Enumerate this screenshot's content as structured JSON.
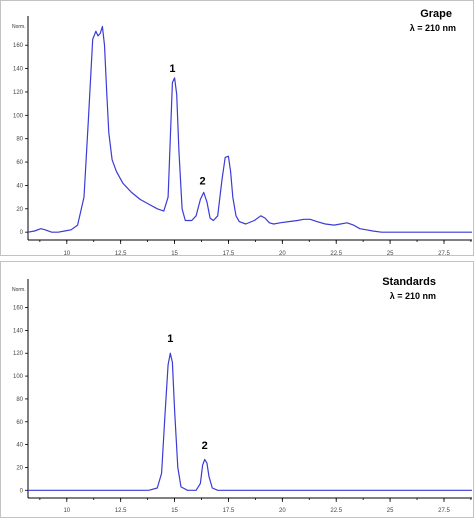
{
  "chart_data": [
    {
      "type": "line",
      "panel": "grape",
      "title": "Grape",
      "subtitle": "λ = 210 nm",
      "ylabel": "Norm.",
      "xlim": [
        8.2,
        28.8
      ],
      "ylim": [
        -5,
        185
      ],
      "xticks": [
        10,
        12.5,
        15,
        17.5,
        20,
        22.5,
        25,
        27.5
      ],
      "xtick_labels": [
        "10",
        "12.5",
        "15",
        "17.5",
        "20",
        "22.5",
        "25",
        "27.5"
      ],
      "yticks": [
        0,
        20,
        40,
        60,
        80,
        100,
        120,
        140,
        160
      ],
      "ytick_labels": [
        "0",
        "20",
        "40",
        "60",
        "80",
        "100",
        "120",
        "140",
        "160"
      ],
      "grid": false,
      "line_color": "#3b3bd6",
      "peak_labels": [
        {
          "text": "1",
          "x": 14.9,
          "y": 137
        },
        {
          "text": "2",
          "x": 16.3,
          "y": 41
        }
      ],
      "series": [
        {
          "x": [
            8.2,
            8.5,
            8.8,
            9.0,
            9.3,
            9.6,
            9.9,
            10.2,
            10.5,
            10.8,
            11.0,
            11.2,
            11.35,
            11.45,
            11.55,
            11.65,
            11.75,
            11.85,
            11.95,
            12.1,
            12.3,
            12.6,
            13.0,
            13.4,
            13.8,
            14.2,
            14.5,
            14.7,
            14.8,
            14.9,
            15.0,
            15.1,
            15.2,
            15.35,
            15.5,
            15.8,
            16.0,
            16.2,
            16.35,
            16.5,
            16.65,
            16.8,
            17.0,
            17.2,
            17.35,
            17.5,
            17.6,
            17.7,
            17.85,
            18.0,
            18.3,
            18.7,
            19.0,
            19.2,
            19.4,
            19.6,
            19.9,
            20.3,
            20.7,
            21.0,
            21.3,
            21.6,
            22.0,
            22.4,
            22.7,
            23.0,
            23.3,
            23.6,
            23.9,
            24.2,
            24.6,
            25.0,
            26.0,
            27.0,
            28.0,
            28.8
          ],
          "y": [
            0,
            1,
            3,
            2,
            0,
            0,
            1,
            2,
            6,
            30,
            95,
            165,
            172,
            168,
            170,
            176,
            160,
            120,
            85,
            62,
            52,
            42,
            34,
            28,
            24,
            20,
            18,
            30,
            80,
            128,
            132,
            118,
            70,
            20,
            10,
            10,
            14,
            28,
            34,
            26,
            12,
            10,
            14,
            45,
            64,
            65,
            52,
            30,
            14,
            9,
            7,
            10,
            14,
            12,
            8,
            7,
            8,
            9,
            10,
            11,
            11,
            9,
            7,
            6,
            7,
            8,
            6,
            3,
            2,
            1,
            0,
            0,
            0,
            0,
            0,
            0
          ]
        }
      ]
    },
    {
      "type": "line",
      "panel": "standards",
      "title": "Standards",
      "subtitle": "λ = 210 nm",
      "ylabel": "Norm.",
      "xlim": [
        8.2,
        28.8
      ],
      "ylim": [
        -5,
        185
      ],
      "xticks": [
        10,
        12.5,
        15,
        17.5,
        20,
        22.5,
        25,
        27.5
      ],
      "xtick_labels": [
        "10",
        "12.5",
        "15",
        "17.5",
        "20",
        "22.5",
        "25",
        "27.5"
      ],
      "yticks": [
        0,
        20,
        40,
        60,
        80,
        100,
        120,
        140,
        160
      ],
      "ytick_labels": [
        "0",
        "20",
        "40",
        "60",
        "80",
        "100",
        "120",
        "140",
        "160"
      ],
      "grid": false,
      "line_color": "#3b3bd6",
      "peak_labels": [
        {
          "text": "1",
          "x": 14.8,
          "y": 130
        },
        {
          "text": "2",
          "x": 16.4,
          "y": 36
        }
      ],
      "series": [
        {
          "x": [
            8.2,
            10.0,
            12.0,
            13.8,
            14.2,
            14.4,
            14.55,
            14.7,
            14.8,
            14.9,
            15.0,
            15.15,
            15.3,
            15.6,
            16.0,
            16.2,
            16.3,
            16.4,
            16.5,
            16.6,
            16.75,
            17.0,
            18.0,
            20.0,
            22.5,
            25.0,
            27.5,
            28.8
          ],
          "y": [
            0,
            0,
            0,
            0,
            2,
            15,
            65,
            110,
            120,
            112,
            70,
            20,
            3,
            0,
            0,
            6,
            22,
            27,
            24,
            12,
            2,
            0,
            0,
            0,
            0,
            0,
            0,
            0
          ]
        }
      ]
    }
  ]
}
